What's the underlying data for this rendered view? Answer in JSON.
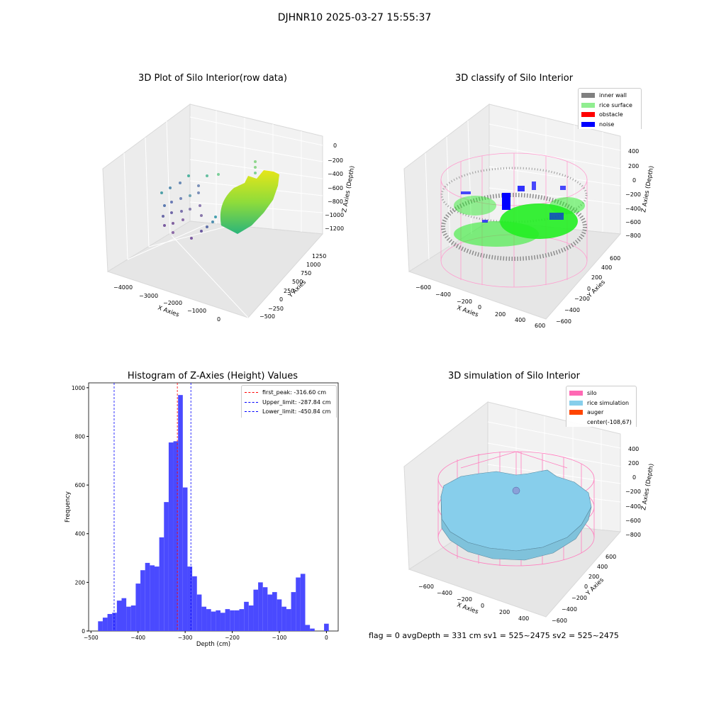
{
  "suptitle": "DJHNR10 2025-03-27 15:55:37",
  "footer": "flag = 0     avgDepth = 331 cm  sv1 = 525~2475  sv2 = 525~2475",
  "colors": {
    "hist_bar": "#4a4aff",
    "peak_line": "#ff0000",
    "limit_line": "#0000ff",
    "inner_wall": "#808080",
    "rice_surface": "#90ee90",
    "obstacle": "#ff0000",
    "noise": "#0000ff",
    "silo": "#ff69b4",
    "rice_simulation": "#87ceeb",
    "auger": "#ff4500"
  },
  "raw_plot": {
    "title": "3D Plot of Silo Interior(row data)",
    "xlabel": "X Axies",
    "ylabel": "Y Axies",
    "zlabel": "Z Axies (Depth)",
    "xticks": [
      "−4000",
      "−3000",
      "−2000",
      "−1000",
      "0"
    ],
    "yticks": [
      "−500",
      "−250",
      "0",
      "250",
      "500",
      "750",
      "1000",
      "1250"
    ],
    "zticks": [
      "0",
      "−200",
      "−400",
      "−600",
      "−800",
      "−1000",
      "−1200"
    ]
  },
  "classify_plot": {
    "title": "3D classify of Silo Interior",
    "xlabel": "X Axies",
    "ylabel": "Y Axies",
    "zlabel": "Z Axies (Depth)",
    "xticks": [
      "−600",
      "−400",
      "−200",
      "0",
      "200",
      "400",
      "600"
    ],
    "yticks": [
      "−600",
      "−400",
      "−200",
      "0",
      "200",
      "400",
      "600"
    ],
    "zticks": [
      "400",
      "200",
      "0",
      "−200",
      "−400",
      "−600",
      "−800"
    ],
    "legend": [
      "inner wall",
      "rice surface",
      "obstacle",
      "noise"
    ]
  },
  "sim_plot": {
    "title": "3D simulation of Silo Interior",
    "xlabel": "X Axies",
    "ylabel": "Y Axies",
    "zlabel": "Z Axies (Depth)",
    "xticks": [
      "−600",
      "−400",
      "−200",
      "0",
      "200",
      "400"
    ],
    "yticks": [
      "−600",
      "−400",
      "−200",
      "0",
      "200",
      "400",
      "600"
    ],
    "zticks": [
      "400",
      "200",
      "0",
      "−200",
      "−400",
      "−600",
      "−800"
    ],
    "legend": [
      "silo",
      "rice simulation",
      "auger",
      "center(-108,67)"
    ]
  },
  "chart_data": {
    "type": "bar",
    "title": "Histogram of Z-Axies (Height) Values",
    "xlabel": "Depth (cm)",
    "ylabel": "Frequency",
    "xlim": [
      -505,
      25
    ],
    "ylim": [
      0,
      1020
    ],
    "xticks": [
      -500,
      -400,
      -300,
      -200,
      -100,
      0
    ],
    "yticks": [
      0,
      200,
      400,
      600,
      800,
      1000
    ],
    "bin_width": 10,
    "bins_start": [
      -485,
      -475,
      -465,
      -455,
      -445,
      -435,
      -425,
      -415,
      -405,
      -395,
      -385,
      -375,
      -365,
      -355,
      -345,
      -335,
      -325,
      -315,
      -305,
      -295,
      -285,
      -275,
      -265,
      -255,
      -245,
      -235,
      -225,
      -215,
      -205,
      -195,
      -185,
      -175,
      -165,
      -155,
      -145,
      -135,
      -125,
      -115,
      -105,
      -95,
      -85,
      -75,
      -65,
      -55,
      -45,
      -35,
      -25,
      -15,
      -5
    ],
    "values": [
      40,
      55,
      70,
      75,
      125,
      135,
      100,
      105,
      195,
      250,
      280,
      270,
      265,
      385,
      530,
      775,
      780,
      970,
      590,
      265,
      225,
      150,
      100,
      90,
      80,
      85,
      75,
      90,
      85,
      85,
      90,
      120,
      105,
      170,
      200,
      180,
      150,
      160,
      130,
      100,
      90,
      160,
      220,
      235,
      25,
      10,
      0,
      0,
      30
    ],
    "vlines": [
      {
        "label": "first_peak: -316.60 cm",
        "x": -316.6,
        "color": "#ff0000"
      },
      {
        "label": "Upper_limit: -287.84 cm",
        "x": -287.84,
        "color": "#0000ff"
      },
      {
        "label": "Lower_limit: -450.84 cm",
        "x": -450.84,
        "color": "#0000ff"
      }
    ]
  }
}
